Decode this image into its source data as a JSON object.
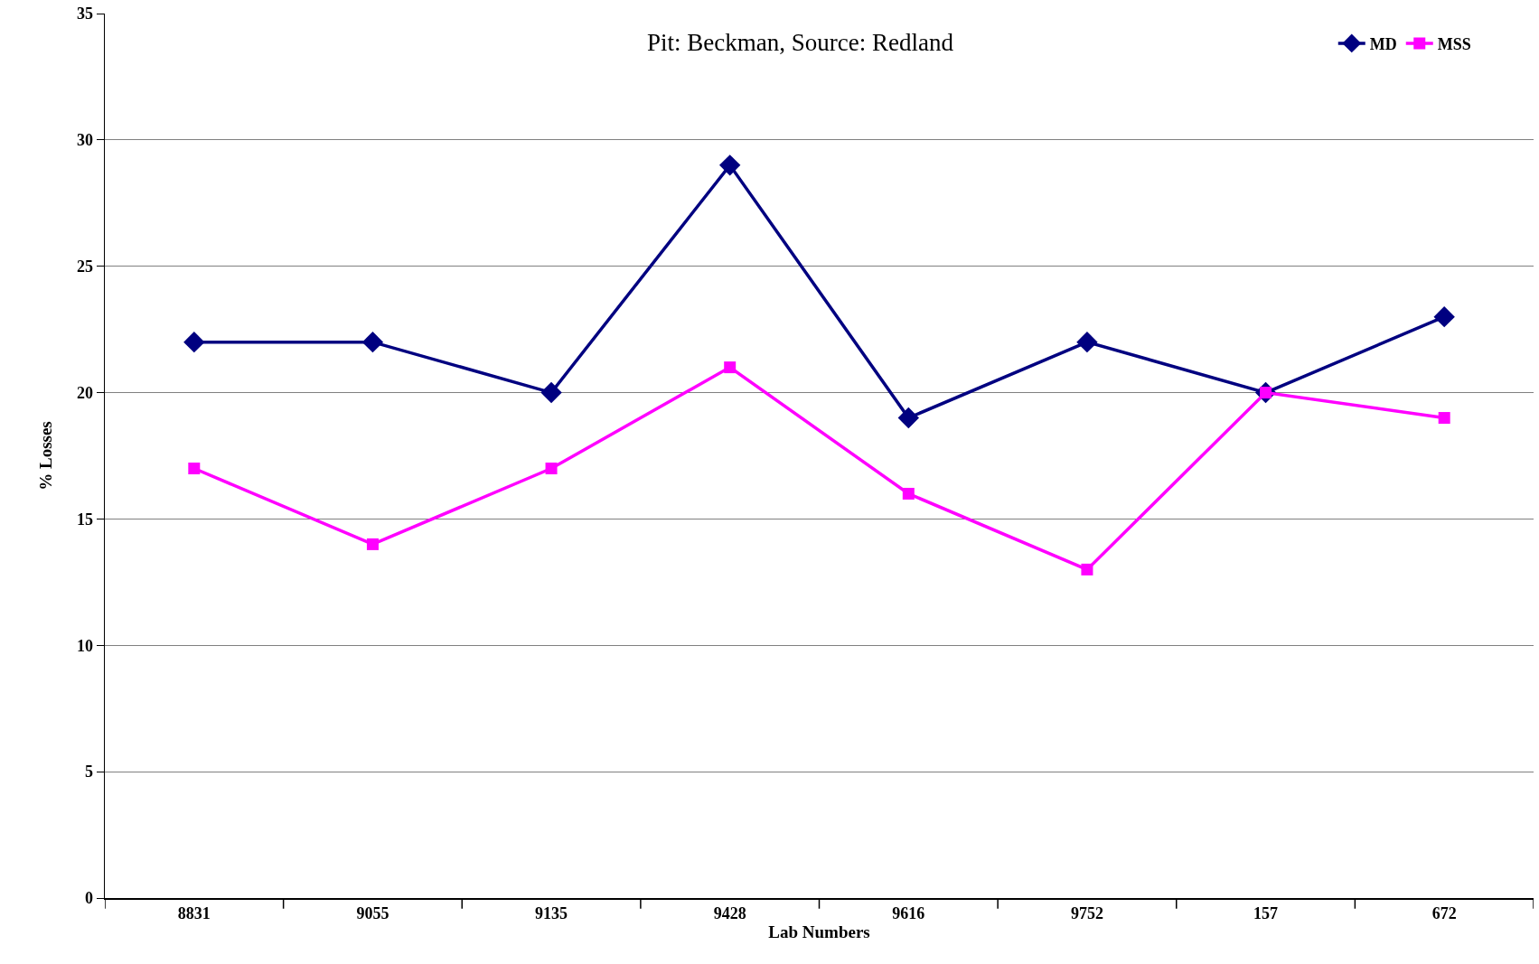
{
  "chart_data": {
    "type": "line",
    "title": "Pit: Beckman, Source: Redland",
    "xlabel": "Lab Numbers",
    "ylabel": "% Losses",
    "categories": [
      "8831",
      "9055",
      "9135",
      "9428",
      "9616",
      "9752",
      "157",
      "672"
    ],
    "series": [
      {
        "name": "MD",
        "color": "#000080",
        "marker": "diamond",
        "values": [
          22,
          22,
          20,
          29,
          19,
          22,
          20,
          23
        ]
      },
      {
        "name": "MSS",
        "color": "#ff00ff",
        "marker": "square",
        "values": [
          17,
          14,
          17,
          21,
          16,
          13,
          20,
          19
        ]
      }
    ],
    "ylim": [
      0,
      35
    ],
    "yticks": [
      0,
      5,
      10,
      15,
      20,
      25,
      30,
      35
    ],
    "grid": "y",
    "legend": "top right",
    "line_style": "solid"
  }
}
